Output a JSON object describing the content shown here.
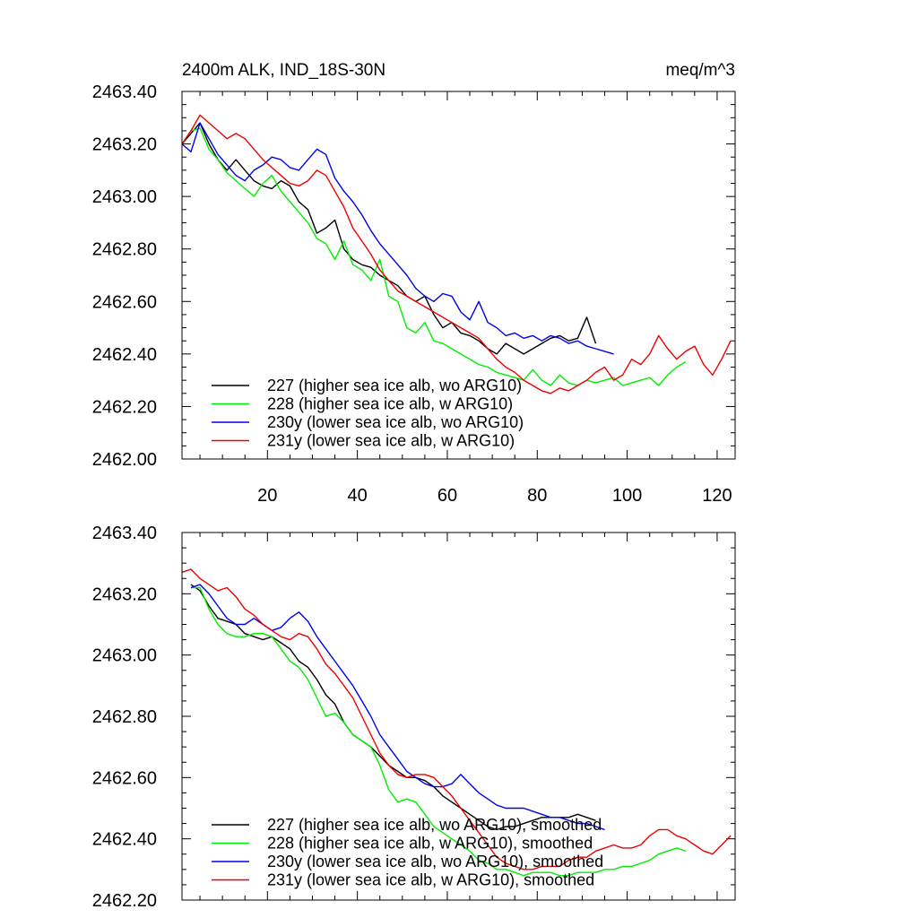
{
  "chart_data": [
    {
      "type": "line",
      "title": "2400m ALK, IND_18S-30N",
      "units": "meq/m^3",
      "xlim": [
        1,
        124
      ],
      "ylim": [
        2462.0,
        2463.4
      ],
      "x_ticks": [
        20,
        40,
        60,
        80,
        100,
        120
      ],
      "x_tick_labels": [
        "20",
        "40",
        "60",
        "80",
        "100",
        "120"
      ],
      "y_ticks": [
        2462.0,
        2462.2,
        2462.4,
        2462.6,
        2462.8,
        2463.0,
        2463.2,
        2463.4
      ],
      "y_tick_labels": [
        "2462.00",
        "2462.20",
        "2462.40",
        "2462.60",
        "2462.80",
        "2463.00",
        "2463.20",
        "2463.40"
      ],
      "legend": [
        "227 (higher sea ice alb, wo ARG10)",
        "228 (higher sea ice alb, w ARG10)",
        "230y (lower sea ice alb, wo ARG10)",
        "231y (lower sea ice alb, w ARG10)"
      ],
      "series": [
        {
          "name": "227 (higher sea ice alb, wo ARG10)",
          "color": "#000000",
          "x": [
            1,
            3,
            5,
            7,
            9,
            11,
            13,
            15,
            17,
            19,
            21,
            23,
            25,
            27,
            29,
            31,
            33,
            35,
            37,
            39,
            41,
            43,
            45,
            47,
            49,
            51,
            53,
            55,
            57,
            59,
            61,
            63,
            65,
            67,
            69,
            71,
            73,
            75,
            77,
            79,
            81,
            83,
            85,
            87,
            89,
            91,
            93
          ],
          "y": [
            2463.2,
            2463.24,
            2463.28,
            2463.2,
            2463.14,
            2463.1,
            2463.14,
            2463.1,
            2463.06,
            2463.04,
            2463.03,
            2463.06,
            2463.04,
            2462.98,
            2462.95,
            2462.86,
            2462.88,
            2462.91,
            2462.8,
            2462.76,
            2462.74,
            2462.73,
            2462.7,
            2462.68,
            2462.66,
            2462.62,
            2462.6,
            2462.62,
            2462.55,
            2462.5,
            2462.52,
            2462.48,
            2462.47,
            2462.45,
            2462.42,
            2462.4,
            2462.44,
            2462.42,
            2462.4,
            2462.42,
            2462.44,
            2462.46,
            2462.47,
            2462.45,
            2462.46,
            2462.54,
            2462.44
          ]
        },
        {
          "name": "228 (higher sea ice alb, w ARG10)",
          "color": "#00ee00",
          "x": [
            1,
            3,
            5,
            7,
            9,
            11,
            13,
            15,
            17,
            19,
            21,
            23,
            25,
            27,
            29,
            31,
            33,
            35,
            37,
            39,
            41,
            43,
            45,
            47,
            49,
            51,
            53,
            55,
            57,
            59,
            61,
            63,
            65,
            67,
            69,
            71,
            73,
            75,
            77,
            79,
            81,
            83,
            85,
            87,
            89,
            91,
            93,
            95,
            97,
            99,
            101,
            103,
            105,
            107,
            109,
            111,
            113
          ],
          "y": [
            2463.2,
            2463.25,
            2463.26,
            2463.18,
            2463.14,
            2463.09,
            2463.06,
            2463.03,
            2463.0,
            2463.05,
            2463.08,
            2463.02,
            2462.98,
            2462.94,
            2462.9,
            2462.84,
            2462.82,
            2462.76,
            2462.83,
            2462.74,
            2462.72,
            2462.68,
            2462.76,
            2462.62,
            2462.6,
            2462.5,
            2462.48,
            2462.52,
            2462.45,
            2462.44,
            2462.42,
            2462.4,
            2462.38,
            2462.36,
            2462.35,
            2462.33,
            2462.32,
            2462.31,
            2462.3,
            2462.34,
            2462.3,
            2462.28,
            2462.32,
            2462.29,
            2462.28,
            2462.3,
            2462.29,
            2462.3,
            2462.31,
            2462.28,
            2462.29,
            2462.3,
            2462.31,
            2462.28,
            2462.32,
            2462.35,
            2462.37
          ]
        },
        {
          "name": "230y (lower sea ice alb, wo ARG10)",
          "color": "#0000ee",
          "x": [
            1,
            3,
            5,
            7,
            9,
            11,
            13,
            15,
            17,
            19,
            21,
            23,
            25,
            27,
            29,
            31,
            33,
            35,
            37,
            39,
            41,
            43,
            45,
            47,
            49,
            51,
            53,
            55,
            57,
            59,
            61,
            63,
            65,
            67,
            69,
            71,
            73,
            75,
            77,
            79,
            81,
            83,
            85,
            87,
            89,
            91,
            93,
            95,
            97
          ],
          "y": [
            2463.2,
            2463.17,
            2463.28,
            2463.22,
            2463.16,
            2463.12,
            2463.08,
            2463.06,
            2463.1,
            2463.12,
            2463.15,
            2463.14,
            2463.11,
            2463.1,
            2463.14,
            2463.18,
            2463.16,
            2463.07,
            2463.02,
            2462.98,
            2462.93,
            2462.87,
            2462.82,
            2462.78,
            2462.74,
            2462.7,
            2462.65,
            2462.62,
            2462.6,
            2462.63,
            2462.62,
            2462.56,
            2462.53,
            2462.6,
            2462.52,
            2462.5,
            2462.47,
            2462.48,
            2462.46,
            2462.47,
            2462.45,
            2462.47,
            2462.46,
            2462.44,
            2462.45,
            2462.43,
            2462.42,
            2462.41,
            2462.4
          ]
        },
        {
          "name": "231y (lower sea ice alb, w ARG10)",
          "color": "#ee0000",
          "x": [
            1,
            3,
            5,
            7,
            9,
            11,
            13,
            15,
            17,
            19,
            21,
            23,
            25,
            27,
            29,
            31,
            33,
            35,
            37,
            39,
            41,
            43,
            45,
            47,
            49,
            51,
            53,
            55,
            57,
            59,
            61,
            63,
            65,
            67,
            69,
            71,
            73,
            75,
            77,
            79,
            81,
            83,
            85,
            87,
            89,
            91,
            93,
            95,
            97,
            99,
            101,
            103,
            105,
            107,
            109,
            111,
            113,
            115,
            117,
            119,
            121,
            123
          ],
          "y": [
            2463.2,
            2463.25,
            2463.31,
            2463.28,
            2463.25,
            2463.22,
            2463.24,
            2463.22,
            2463.18,
            2463.14,
            2463.11,
            2463.08,
            2463.05,
            2463.04,
            2463.06,
            2463.1,
            2463.08,
            2463.02,
            2462.96,
            2462.88,
            2462.83,
            2462.78,
            2462.72,
            2462.68,
            2462.64,
            2462.62,
            2462.6,
            2462.58,
            2462.56,
            2462.54,
            2462.52,
            2462.5,
            2462.48,
            2462.46,
            2462.42,
            2462.38,
            2462.35,
            2462.33,
            2462.3,
            2462.28,
            2462.26,
            2462.25,
            2462.27,
            2462.26,
            2462.28,
            2462.3,
            2462.33,
            2462.35,
            2462.3,
            2462.32,
            2462.38,
            2462.36,
            2462.4,
            2462.47,
            2462.42,
            2462.38,
            2462.41,
            2462.43,
            2462.36,
            2462.32,
            2462.38,
            2462.45
          ]
        }
      ]
    },
    {
      "type": "line",
      "title": "",
      "xlim": [
        1,
        124
      ],
      "ylim": [
        2462.2,
        2463.4
      ],
      "y_ticks": [
        2462.2,
        2462.4,
        2462.6,
        2462.8,
        2463.0,
        2463.2,
        2463.4
      ],
      "y_tick_labels": [
        "2462.20",
        "2462.40",
        "2462.60",
        "2462.80",
        "2463.00",
        "2463.20",
        "2463.40"
      ],
      "legend": [
        "227 (higher sea ice alb, wo ARG10), smoothed",
        "228 (higher sea ice alb, w ARG10), smoothed",
        "230y (lower sea ice alb, wo ARG10), smoothed",
        "231y (lower sea ice alb, w ARG10), smoothed"
      ],
      "series": [
        {
          "name": "227 (higher sea ice alb, wo ARG10), smoothed",
          "color": "#000000",
          "x": [
            3,
            5,
            7,
            9,
            11,
            13,
            15,
            17,
            19,
            21,
            23,
            25,
            27,
            29,
            31,
            33,
            35,
            37,
            39,
            41,
            43,
            45,
            47,
            49,
            51,
            53,
            55,
            57,
            59,
            61,
            63,
            65,
            67,
            69,
            71,
            73,
            75,
            77,
            79,
            81,
            83,
            85,
            87,
            89,
            91,
            93
          ],
          "y": [
            2463.23,
            2463.21,
            2463.16,
            2463.12,
            2463.11,
            2463.1,
            2463.07,
            2463.06,
            2463.05,
            2463.06,
            2463.04,
            2463.02,
            2462.98,
            2462.96,
            2462.92,
            2462.87,
            2462.84,
            2462.78,
            2462.74,
            2462.72,
            2462.7,
            2462.67,
            2462.64,
            2462.62,
            2462.6,
            2462.6,
            2462.59,
            2462.57,
            2462.54,
            2462.52,
            2462.5,
            2462.48,
            2462.46,
            2462.44,
            2462.43,
            2462.44,
            2462.44,
            2462.45,
            2462.46,
            2462.47,
            2462.47,
            2462.47,
            2462.47,
            2462.48,
            2462.47,
            2462.46
          ]
        },
        {
          "name": "228 (higher sea ice alb, w ARG10), smoothed",
          "color": "#00ee00",
          "x": [
            3,
            5,
            7,
            9,
            11,
            13,
            15,
            17,
            19,
            21,
            23,
            25,
            27,
            29,
            31,
            33,
            35,
            37,
            39,
            41,
            43,
            45,
            47,
            49,
            51,
            53,
            55,
            57,
            59,
            61,
            63,
            65,
            67,
            69,
            71,
            73,
            75,
            77,
            79,
            81,
            83,
            85,
            87,
            89,
            91,
            93,
            95,
            97,
            99,
            101,
            103,
            105,
            107,
            109,
            111,
            113
          ],
          "y": [
            2463.22,
            2463.22,
            2463.15,
            2463.1,
            2463.07,
            2463.06,
            2463.06,
            2463.07,
            2463.07,
            2463.06,
            2463.02,
            2462.98,
            2462.96,
            2462.92,
            2462.86,
            2462.8,
            2462.81,
            2462.78,
            2462.74,
            2462.72,
            2462.7,
            2462.64,
            2462.56,
            2462.52,
            2462.53,
            2462.52,
            2462.48,
            2462.44,
            2462.42,
            2462.4,
            2462.38,
            2462.36,
            2462.33,
            2462.32,
            2462.3,
            2462.3,
            2462.29,
            2462.28,
            2462.29,
            2462.29,
            2462.29,
            2462.28,
            2462.28,
            2462.29,
            2462.29,
            2462.29,
            2462.3,
            2462.3,
            2462.31,
            2462.31,
            2462.32,
            2462.33,
            2462.35,
            2462.36,
            2462.37,
            2462.36
          ]
        },
        {
          "name": "230y (lower sea ice alb, wo ARG10), smoothed",
          "color": "#0000ee",
          "x": [
            3,
            5,
            7,
            9,
            11,
            13,
            15,
            17,
            19,
            21,
            23,
            25,
            27,
            29,
            31,
            33,
            35,
            37,
            39,
            41,
            43,
            45,
            47,
            49,
            51,
            53,
            55,
            57,
            59,
            61,
            63,
            65,
            67,
            69,
            71,
            73,
            75,
            77,
            79,
            81,
            83,
            85,
            87,
            89,
            91,
            93,
            95
          ],
          "y": [
            2463.22,
            2463.23,
            2463.2,
            2463.16,
            2463.12,
            2463.1,
            2463.1,
            2463.12,
            2463.1,
            2463.08,
            2463.09,
            2463.12,
            2463.14,
            2463.11,
            2463.06,
            2463.02,
            2462.98,
            2462.94,
            2462.9,
            2462.85,
            2462.8,
            2462.74,
            2462.7,
            2462.66,
            2462.62,
            2462.6,
            2462.58,
            2462.57,
            2462.57,
            2462.58,
            2462.61,
            2462.58,
            2462.55,
            2462.53,
            2462.51,
            2462.5,
            2462.5,
            2462.5,
            2462.49,
            2462.48,
            2462.47,
            2462.47,
            2462.46,
            2462.45,
            2462.45,
            2462.44,
            2462.43
          ]
        },
        {
          "name": "231y (lower sea ice alb, w ARG10), smoothed",
          "color": "#ee0000",
          "x": [
            1,
            3,
            5,
            7,
            9,
            11,
            13,
            15,
            17,
            19,
            21,
            23,
            25,
            27,
            29,
            31,
            33,
            35,
            37,
            39,
            41,
            43,
            45,
            47,
            49,
            51,
            53,
            55,
            57,
            59,
            61,
            63,
            65,
            67,
            69,
            71,
            73,
            75,
            77,
            79,
            81,
            83,
            85,
            87,
            89,
            91,
            93,
            95,
            97,
            99,
            101,
            103,
            105,
            107,
            109,
            111,
            113,
            115,
            117,
            119,
            121,
            123
          ],
          "y": [
            2463.27,
            2463.28,
            2463.25,
            2463.23,
            2463.21,
            2463.22,
            2463.19,
            2463.15,
            2463.13,
            2463.1,
            2463.08,
            2463.06,
            2463.05,
            2463.07,
            2463.06,
            2463.02,
            2462.97,
            2462.94,
            2462.9,
            2462.86,
            2462.8,
            2462.74,
            2462.68,
            2462.64,
            2462.61,
            2462.6,
            2462.61,
            2462.61,
            2462.6,
            2462.57,
            2462.54,
            2462.5,
            2462.46,
            2462.42,
            2462.38,
            2462.34,
            2462.32,
            2462.31,
            2462.3,
            2462.3,
            2462.31,
            2462.31,
            2462.31,
            2462.33,
            2462.34,
            2462.34,
            2462.36,
            2462.37,
            2462.38,
            2462.37,
            2462.37,
            2462.38,
            2462.41,
            2462.43,
            2462.43,
            2462.41,
            2462.4,
            2462.38,
            2462.36,
            2462.35,
            2462.38,
            2462.41
          ]
        }
      ]
    }
  ]
}
